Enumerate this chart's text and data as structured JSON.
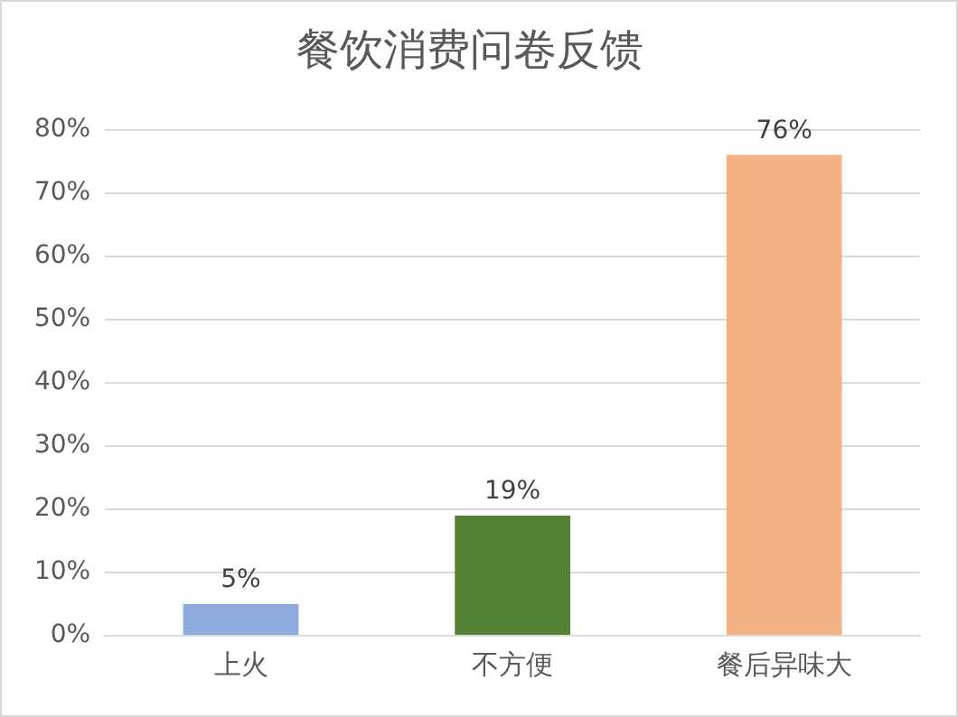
{
  "chart_data": {
    "type": "bar",
    "title": "餐饮消费问卷反馈",
    "categories": [
      "上火",
      "不方便",
      "餐后异味大"
    ],
    "values": [
      5,
      19,
      76
    ],
    "colors": [
      "#8faadc",
      "#548235",
      "#f4b183"
    ],
    "value_labels": [
      "5%",
      "19%",
      "76%"
    ],
    "ylim": [
      0,
      80
    ],
    "yticks": [
      {
        "value": 0,
        "label": "0%"
      },
      {
        "value": 10,
        "label": "10%"
      },
      {
        "value": 20,
        "label": "20%"
      },
      {
        "value": 30,
        "label": "30%"
      },
      {
        "value": 40,
        "label": "40%"
      },
      {
        "value": 50,
        "label": "50%"
      },
      {
        "value": 60,
        "label": "60%"
      },
      {
        "value": 70,
        "label": "70%"
      },
      {
        "value": 80,
        "label": "80%"
      }
    ],
    "grid": "y",
    "legend": false
  }
}
